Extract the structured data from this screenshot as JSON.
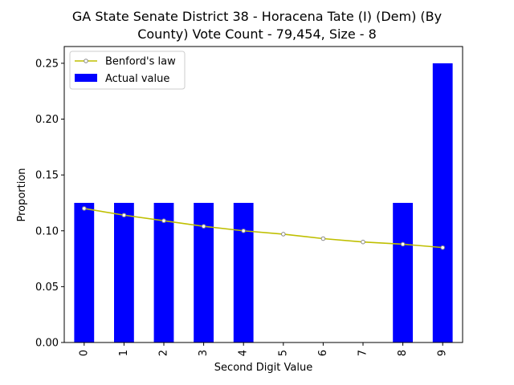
{
  "chart_data": {
    "type": "bar",
    "title_line1": "GA State Senate District 38 - Horacena Tate (I) (Dem) (By",
    "title_line2": "County) Vote Count - 79,454, Size - 8",
    "xlabel": "Second Digit Value",
    "ylabel": "Proportion",
    "categories": [
      "0",
      "1",
      "2",
      "3",
      "4",
      "5",
      "6",
      "7",
      "8",
      "9"
    ],
    "ylim": [
      0,
      0.265
    ],
    "yticks": [
      "0.00",
      "0.05",
      "0.10",
      "0.15",
      "0.20",
      "0.25"
    ],
    "grid": false,
    "legend_position": "upper-left",
    "series": [
      {
        "name": "Actual value",
        "kind": "bar",
        "color": "#0000ff",
        "values": [
          0.125,
          0.125,
          0.125,
          0.125,
          0.125,
          0.0,
          0.0,
          0.0,
          0.125,
          0.25
        ]
      },
      {
        "name": "Benford's law",
        "kind": "line",
        "color": "#bfbf00",
        "values": [
          0.12,
          0.114,
          0.109,
          0.104,
          0.1,
          0.097,
          0.093,
          0.09,
          0.088,
          0.085
        ]
      }
    ]
  }
}
